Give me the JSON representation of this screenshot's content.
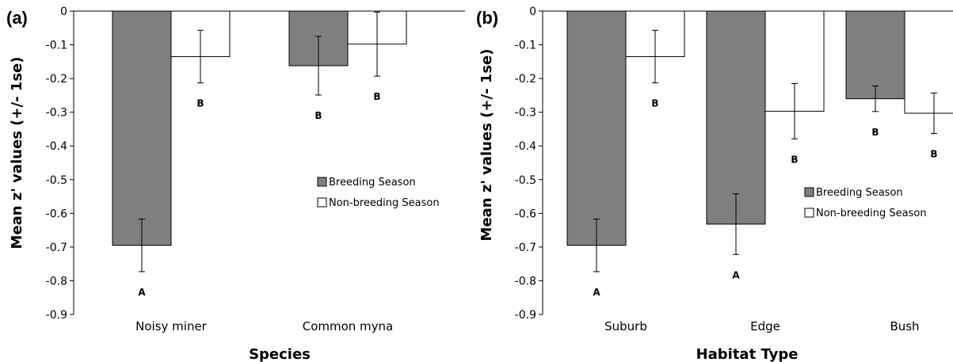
{
  "chart_data": [
    {
      "type": "bar",
      "panel_label": "(a)",
      "categories": [
        "Noisy miner",
        "Common myna"
      ],
      "xlabel": "Species",
      "ylabel": "Mean z' values (+/- 1se)",
      "ylim": [
        -0.9,
        0
      ],
      "yticks": [
        0,
        -0.1,
        -0.2,
        -0.3,
        -0.4,
        -0.5,
        -0.6,
        -0.7,
        -0.8,
        -0.9
      ],
      "ytick_labels": [
        "0",
        "-0.1",
        "-0.2",
        "-0.3",
        "-0.4",
        "-0.5",
        "-0.6",
        "-0.7",
        "-0.8",
        "-0.9"
      ],
      "legend_position": "right-middle",
      "series": [
        {
          "name": "Breeding Season",
          "color": "#7f7f7f",
          "values": [
            -0.695,
            -0.162
          ],
          "errors": [
            0.078,
            0.087
          ],
          "sig_labels": [
            "A",
            "B"
          ]
        },
        {
          "name": "Non-breeding Season",
          "color": "#ffffff",
          "values": [
            -0.135,
            -0.098
          ],
          "errors": [
            0.078,
            0.095
          ],
          "sig_labels": [
            "B",
            "B"
          ]
        }
      ]
    },
    {
      "type": "bar",
      "panel_label": "(b)",
      "categories": [
        "Suburb",
        "Edge",
        "Bush"
      ],
      "xlabel": "Habitat Type",
      "ylabel": "Mean z' values (+/- 1se)",
      "ylim": [
        -0.9,
        0
      ],
      "yticks": [
        0,
        -0.1,
        -0.2,
        -0.3,
        -0.4,
        -0.5,
        -0.6,
        -0.7,
        -0.8,
        -0.9
      ],
      "ytick_labels": [
        "0",
        "-0.1",
        "-0.2",
        "-0.3",
        "-0.4",
        "-0.5",
        "-0.6",
        "-0.7",
        "-0.8",
        "-0.9"
      ],
      "legend_position": "right-middle",
      "series": [
        {
          "name": "Breeding Season",
          "color": "#7f7f7f",
          "values": [
            -0.695,
            -0.632,
            -0.26
          ],
          "errors": [
            0.078,
            0.09,
            0.038
          ],
          "sig_labels": [
            "A",
            "A",
            "B"
          ]
        },
        {
          "name": "Non-breeding Season",
          "color": "#ffffff",
          "values": [
            -0.135,
            -0.297,
            -0.303
          ],
          "errors": [
            0.078,
            0.082,
            0.06
          ],
          "sig_labels": [
            "B",
            "B",
            "B"
          ]
        }
      ]
    }
  ]
}
